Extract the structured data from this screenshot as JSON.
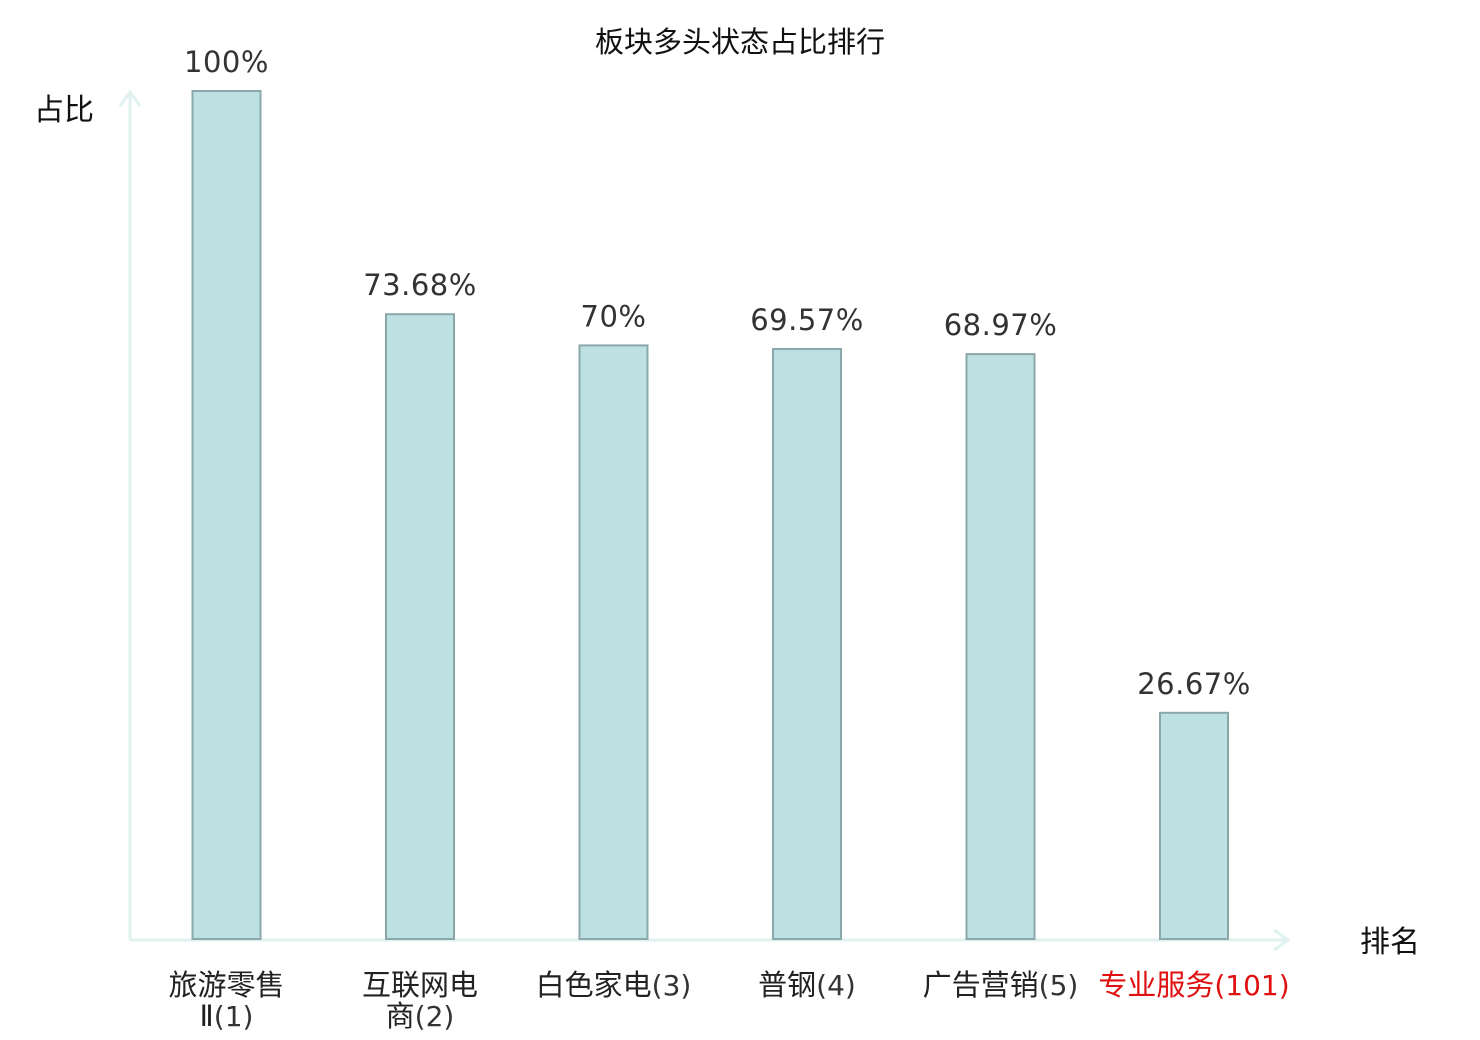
{
  "chart_data": {
    "type": "bar",
    "title": "板块多头状态占比排行",
    "xlabel": "排名",
    "ylabel": "占比",
    "ylim": [
      0,
      100
    ],
    "grid": false,
    "legend": "none",
    "unit_suffix": "%",
    "categories": [
      {
        "name": "旅游零售Ⅱ",
        "rank": "(1)",
        "highlight": false
      },
      {
        "name": "互联网电商",
        "rank": "(2)",
        "highlight": false
      },
      {
        "name": "白色家电",
        "rank": "(3)",
        "highlight": false
      },
      {
        "name": "普钢",
        "rank": "(4)",
        "highlight": false
      },
      {
        "name": "广告营销",
        "rank": "(5)",
        "highlight": false
      },
      {
        "name": "专业服务",
        "rank": "(101)",
        "highlight": true
      }
    ],
    "values": [
      100,
      73.68,
      70,
      69.57,
      68.97,
      26.67
    ],
    "labels": [
      "100%",
      "73.68%",
      "70%",
      "69.57%",
      "68.97%",
      "26.67%"
    ],
    "colors": {
      "bar_fill": "#bde0e3",
      "bar_stroke": "#8aa7aa",
      "axis": "#dff2ef",
      "text": "#222222",
      "rank_text": "#333333",
      "highlight": "#e01010"
    }
  }
}
